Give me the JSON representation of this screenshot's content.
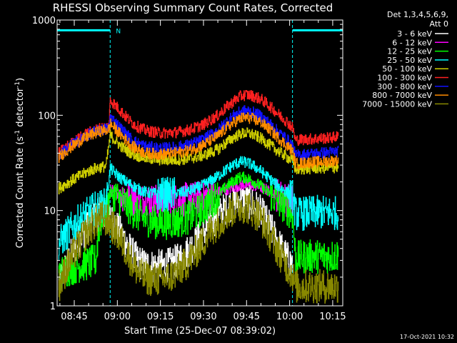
{
  "chart_data": {
    "type": "line",
    "title": "RHESSI Observing Summary Count Rates, Corrected",
    "xlabel": "Start Time (25-Dec-07 08:39:02)",
    "ylabel": "Corrected Count Rate (s",
    "ylabel_sup1": "-1",
    "ylabel_mid": " detector",
    "ylabel_sup2": "-1",
    "ylabel_end": ")",
    "x_ticks": [
      "08:45",
      "09:00",
      "09:15",
      "09:30",
      "09:45",
      "10:00",
      "10:15"
    ],
    "x_tick_minutes": [
      45,
      60,
      75,
      90,
      105,
      120,
      135
    ],
    "x_range_minutes": [
      39.03,
      138.5
    ],
    "y_scale": "log",
    "ylim": [
      1,
      1000
    ],
    "y_ticks": [
      "1",
      "10",
      "100",
      "1000"
    ],
    "y_tick_values": [
      1,
      10,
      100,
      1000
    ],
    "legend_title_line1": "Det 1,3,4,5,6,9,",
    "legend_title_line2": "Att 0",
    "legend_placement": "right",
    "night_intervals": [
      [
        39.03,
        57.5
      ],
      [
        121.0,
        138.5
      ]
    ],
    "saa_label": "N",
    "saa_label_minute": 59.5,
    "saa_bar_level": 780,
    "series": [
      {
        "name": "3 - 6 keV",
        "color": "#ffffff",
        "x": [
          39.5,
          42,
          45,
          48,
          50,
          52,
          54,
          55,
          57,
          59,
          61,
          63,
          65,
          67,
          69,
          72,
          75,
          78,
          81,
          84,
          87,
          90,
          93,
          96,
          99,
          101,
          103,
          105,
          107,
          109,
          111,
          113,
          115,
          117,
          119,
          121
        ],
        "y": [
          1.7,
          2.6,
          4.0,
          5.8,
          7.1,
          8.3,
          9.2,
          9.5,
          8.6,
          7.2,
          5.9,
          4.6,
          3.6,
          3.0,
          2.7,
          2.6,
          2.6,
          2.7,
          3.0,
          3.6,
          4.6,
          6.0,
          7.7,
          9.5,
          11.3,
          12.3,
          12.8,
          12.6,
          11.8,
          10.4,
          8.6,
          6.8,
          5.2,
          4.0,
          3.2,
          2.7
        ]
      },
      {
        "name": "6 - 12 keV",
        "color": "#ff00ff",
        "x": [
          57.5,
          59,
          61,
          63,
          65,
          67,
          70,
          75,
          80,
          85,
          90,
          95,
          100,
          103,
          105,
          107,
          110,
          113,
          116,
          119,
          121
        ],
        "y": [
          16.5,
          15.8,
          15.0,
          14.2,
          13.5,
          13.0,
          12.8,
          12.6,
          12.8,
          13.2,
          14.0,
          15.5,
          17.5,
          18.5,
          18.8,
          18.5,
          17.5,
          16.0,
          14.5,
          13.0,
          12.2
        ]
      },
      {
        "name": "12 - 25 keV",
        "color": "#00ff00",
        "x": [
          39.5,
          43,
          46,
          50,
          52.5,
          53.5,
          55,
          56.5,
          57.5,
          59,
          61,
          63,
          65,
          67,
          70,
          75,
          80,
          85,
          90,
          95,
          98,
          101,
          103,
          105,
          107,
          110,
          113,
          116,
          119,
          121,
          122,
          126,
          130,
          134,
          137
        ],
        "y": [
          2.2,
          2.4,
          2.6,
          2.8,
          3.0,
          6.5,
          9.0,
          10.5,
          15.5,
          14.5,
          13.0,
          11.5,
          10.0,
          9.0,
          8.0,
          7.4,
          7.6,
          8.5,
          10.5,
          14.5,
          18.0,
          21.0,
          22.5,
          22.0,
          20.5,
          18.0,
          15.0,
          12.5,
          10.5,
          9.0,
          3.2,
          3.3,
          3.3,
          3.3,
          3.4
        ]
      },
      {
        "name": "25 - 50 keV",
        "color": "#00ffff",
        "x": [
          39.5,
          42,
          44,
          46,
          48,
          50,
          52,
          54,
          56,
          57.5,
          59,
          61,
          63,
          65,
          67,
          70,
          75,
          80,
          85,
          90,
          95,
          98,
          101,
          103,
          105,
          107,
          110,
          113,
          116,
          119,
          121,
          122,
          126,
          130,
          134,
          137
        ],
        "y": [
          4.5,
          5.5,
          6.5,
          7.5,
          8.5,
          9.5,
          10.5,
          11.0,
          11.5,
          28.0,
          25.0,
          22.0,
          20.0,
          18.5,
          17.0,
          15.5,
          14.8,
          15.0,
          16.0,
          18.5,
          23.0,
          27.0,
          31.0,
          32.5,
          32.0,
          30.0,
          26.0,
          21.5,
          18.0,
          15.5,
          14.0,
          9.2,
          9.4,
          9.6,
          9.5,
          9.4
        ]
      },
      {
        "name": "50 - 100 keV",
        "color": "#d0d000",
        "x": [
          39.5,
          42,
          45,
          48,
          50,
          52,
          54,
          56,
          57.5,
          59,
          61,
          63,
          65,
          67,
          70,
          75,
          80,
          85,
          90,
          95,
          98,
          101,
          103,
          105,
          107,
          110,
          113,
          116,
          119,
          121,
          122,
          126,
          130,
          134,
          137
        ],
        "y": [
          17.0,
          19.0,
          21.5,
          24.0,
          26.0,
          27.5,
          28.5,
          29.0,
          62.0,
          55.0,
          48.0,
          43.0,
          40.0,
          37.5,
          35.5,
          34.0,
          34.0,
          35.0,
          38.0,
          44.0,
          52.0,
          60.0,
          64.0,
          65.0,
          63.0,
          57.0,
          49.0,
          42.0,
          36.5,
          33.0,
          27.0,
          27.5,
          28.0,
          28.0,
          28.5
        ]
      },
      {
        "name": "100 - 300 keV",
        "color": "#ff2020",
        "x": [
          39.5,
          42,
          45,
          48,
          51,
          54,
          57,
          57.5,
          59,
          61,
          63,
          65,
          67,
          70,
          75,
          80,
          85,
          90,
          95,
          98,
          101,
          103,
          105,
          107,
          110,
          113,
          116,
          119,
          121,
          122,
          126,
          130,
          134,
          137
        ],
        "y": [
          40.0,
          46.0,
          53.0,
          61.0,
          68.0,
          73.0,
          76.0,
          145.0,
          130.0,
          112.0,
          96.0,
          84.0,
          76.0,
          69.0,
          65.0,
          66.0,
          70.0,
          80.0,
          100.0,
          122.0,
          145.0,
          160.0,
          165.0,
          160.0,
          148.0,
          125.0,
          103.0,
          86.0,
          74.0,
          55.0,
          56.0,
          57.0,
          58.0,
          60.0
        ]
      },
      {
        "name": "300 - 800 keV",
        "color": "#1010ff",
        "x": [
          39.5,
          42,
          45,
          48,
          51,
          54,
          57,
          57.5,
          59,
          61,
          63,
          65,
          67,
          70,
          75,
          80,
          85,
          90,
          95,
          98,
          101,
          103,
          105,
          107,
          110,
          113,
          116,
          119,
          121,
          122,
          126,
          130,
          134,
          137
        ],
        "y": [
          38.0,
          44.0,
          51.0,
          58.0,
          65.0,
          70.0,
          73.0,
          98.0,
          86.0,
          74.0,
          64.0,
          56.0,
          51.0,
          47.0,
          45.0,
          46.0,
          49.0,
          56.0,
          70.0,
          86.0,
          102.0,
          110.0,
          112.0,
          108.0,
          98.0,
          82.0,
          67.0,
          56.0,
          48.0,
          38.0,
          39.0,
          40.0,
          41.0,
          42.0
        ]
      },
      {
        "name": "800 - 7000 keV",
        "color": "#ff8c00",
        "x": [
          39.5,
          42,
          45,
          48,
          51,
          54,
          57,
          57.5,
          59,
          61,
          63,
          65,
          67,
          70,
          75,
          80,
          85,
          90,
          95,
          98,
          101,
          103,
          105,
          107,
          110,
          113,
          116,
          119,
          121,
          122,
          126,
          130,
          134,
          137
        ],
        "y": [
          36.0,
          42.0,
          49.0,
          56.0,
          63.0,
          68.0,
          71.0,
          82.0,
          73.0,
          63.0,
          55.0,
          48.0,
          44.0,
          40.0,
          39.0,
          40.0,
          43.0,
          49.0,
          61.0,
          74.0,
          86.0,
          93.0,
          95.0,
          92.0,
          84.0,
          71.0,
          58.0,
          48.0,
          42.0,
          31.0,
          32.0,
          32.5,
          33.0,
          33.5
        ]
      },
      {
        "name": "7000 - 15000 keV",
        "color": "#888800",
        "x": [
          39.5,
          42,
          45,
          48,
          50,
          52,
          54,
          55,
          57,
          59,
          61,
          63,
          65,
          67,
          69,
          72,
          75,
          78,
          81,
          84,
          87,
          90,
          93,
          96,
          99,
          101,
          103,
          105,
          107,
          109,
          111,
          113,
          115,
          117,
          119,
          121,
          122,
          126,
          130,
          134,
          137
        ],
        "y": [
          1.6,
          2.4,
          3.6,
          5.2,
          6.3,
          7.4,
          8.2,
          8.4,
          7.6,
          6.3,
          5.0,
          3.8,
          2.9,
          2.3,
          2.0,
          1.9,
          1.9,
          2.0,
          2.3,
          2.8,
          3.6,
          4.8,
          6.4,
          8.0,
          9.6,
          10.6,
          11.1,
          10.9,
          10.1,
          8.9,
          7.3,
          5.7,
          4.3,
          3.3,
          2.6,
          2.1,
          1.6,
          1.6,
          1.6,
          1.6,
          1.6
        ]
      }
    ],
    "footer_date": "17-Oct-2021 10:32"
  }
}
